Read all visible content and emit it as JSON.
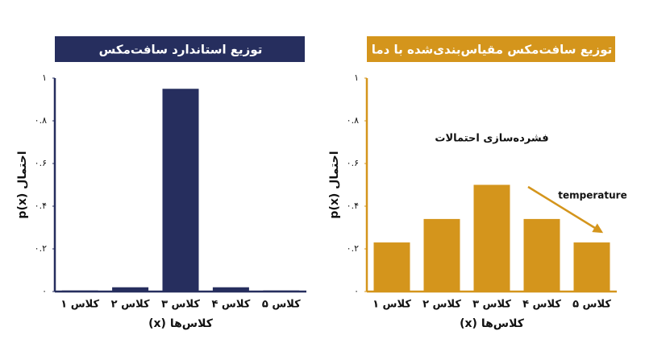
{
  "chart_data": [
    {
      "type": "bar",
      "title": "توزیع استاندارد سافت‌مکس",
      "color": "#262e5e",
      "categories": [
        "کلاس ۱",
        "کلاس ۲",
        "کلاس ۳",
        "کلاس ۴",
        "کلاس ۵"
      ],
      "values": [
        0.005,
        0.02,
        0.95,
        0.02,
        0.005
      ],
      "ylim": [
        0,
        1
      ],
      "yticks": [
        {
          "value": 0,
          "label": "۰"
        },
        {
          "value": 0.2,
          "label": "۰.۲"
        },
        {
          "value": 0.4,
          "label": "۰.۴"
        },
        {
          "value": 0.6,
          "label": "۰.۶"
        },
        {
          "value": 0.8,
          "label": "۰.۸"
        },
        {
          "value": 1,
          "label": "۱"
        }
      ],
      "xlabel": "کلاس‌ها (x)",
      "ylabel": "احتمال p(x)"
    },
    {
      "type": "bar",
      "title": "توزیع سافت‌مکس مقیاس‌بندی‌شده با دما",
      "color": "#d4951c",
      "categories": [
        "کلاس ۱",
        "کلاس ۲",
        "کلاس ۳",
        "کلاس ۴",
        "کلاس ۵"
      ],
      "values": [
        0.23,
        0.34,
        0.5,
        0.34,
        0.23
      ],
      "ylim": [
        0,
        1
      ],
      "yticks": [
        {
          "value": 0,
          "label": "۰"
        },
        {
          "value": 0.2,
          "label": "۰.۲"
        },
        {
          "value": 0.4,
          "label": "۰.۴"
        },
        {
          "value": 0.6,
          "label": "۰.۶"
        },
        {
          "value": 0.8,
          "label": "۰.۸"
        },
        {
          "value": 1,
          "label": "۱"
        }
      ],
      "xlabel": "کلاس‌ها (x)",
      "ylabel": "احتمال p(x)",
      "annotations": [
        "فشرده‌سازی احتمالات",
        "temperature"
      ]
    }
  ]
}
